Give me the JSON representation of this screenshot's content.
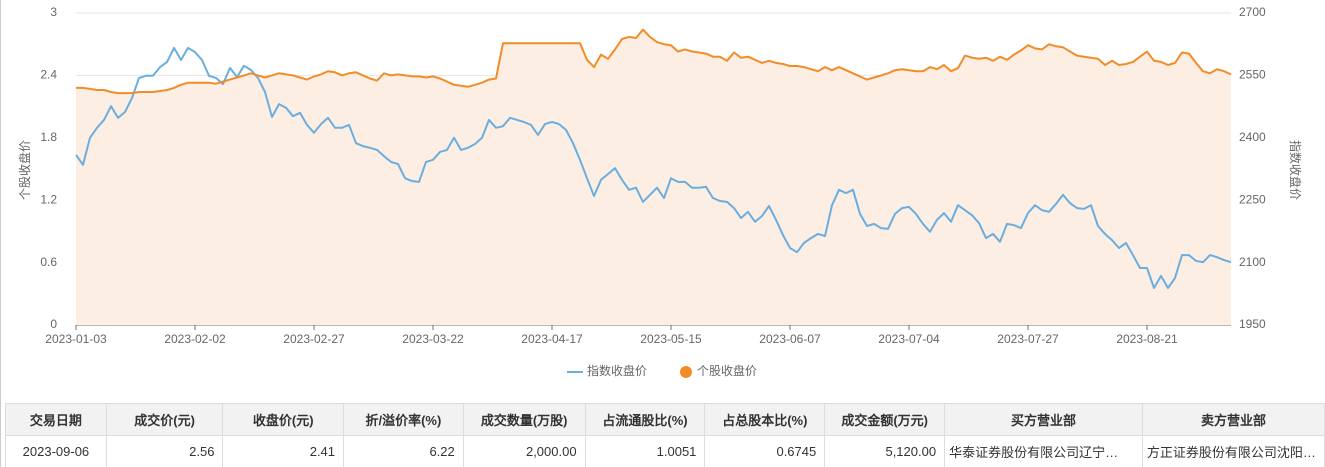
{
  "chart_data": {
    "type": "line",
    "ylabel": "个股收盘价",
    "y2label": "指数收盘价",
    "ylim": [
      0,
      3
    ],
    "yticks": [
      0,
      0.6,
      1.2,
      1.8,
      2.4,
      3
    ],
    "y2lim": [
      1950,
      2700
    ],
    "y2ticks": [
      1950,
      2100,
      2250,
      2400,
      2550,
      2700
    ],
    "grid": true,
    "legend": "bottom",
    "categories": [
      "2023-01-03",
      null,
      null,
      null,
      null,
      null,
      null,
      null,
      null,
      null,
      null,
      null,
      null,
      null,
      null,
      null,
      null,
      "2023-02-02",
      null,
      null,
      null,
      null,
      null,
      null,
      null,
      null,
      null,
      null,
      null,
      null,
      null,
      null,
      null,
      null,
      "2023-02-27",
      null,
      null,
      null,
      null,
      null,
      null,
      null,
      null,
      null,
      null,
      null,
      null,
      null,
      null,
      null,
      null,
      "2023-03-22",
      null,
      null,
      null,
      null,
      null,
      null,
      null,
      null,
      null,
      null,
      null,
      null,
      null,
      null,
      null,
      null,
      "2023-04-17",
      null,
      null,
      null,
      null,
      null,
      null,
      null,
      null,
      null,
      null,
      null,
      null,
      null,
      null,
      null,
      null,
      "2023-05-15",
      null,
      null,
      null,
      null,
      null,
      null,
      null,
      null,
      null,
      null,
      null,
      null,
      null,
      null,
      null,
      null,
      "2023-06-07",
      null,
      null,
      null,
      null,
      null,
      null,
      null,
      null,
      null,
      null,
      null,
      null,
      null,
      null,
      null,
      null,
      "2023-07-04",
      null,
      null,
      null,
      null,
      null,
      null,
      null,
      null,
      null,
      null,
      null,
      null,
      null,
      null,
      null,
      null,
      "2023-07-27",
      null,
      null,
      null,
      null,
      null,
      null,
      null,
      null,
      null,
      null,
      null,
      null,
      null,
      null,
      null,
      null,
      "2023-08-21",
      null,
      null,
      null,
      null,
      null,
      null,
      null,
      null,
      null,
      null,
      null,
      null
    ],
    "series": [
      {
        "name": "指数收盘价",
        "color": "#6aaee0",
        "axis": "y2",
        "values": [
          2359,
          2335,
          2400,
          2424,
          2443,
          2476,
          2448,
          2462,
          2496,
          2544,
          2549,
          2549,
          2570,
          2582,
          2616,
          2587,
          2616,
          2606,
          2587,
          2549,
          2544,
          2529,
          2568,
          2546,
          2573,
          2563,
          2544,
          2510,
          2450,
          2481,
          2472,
          2452,
          2460,
          2431,
          2412,
          2433,
          2448,
          2424,
          2424,
          2431,
          2387,
          2380,
          2376,
          2371,
          2356,
          2342,
          2337,
          2303,
          2296,
          2294,
          2342,
          2347,
          2366,
          2371,
          2400,
          2371,
          2376,
          2385,
          2400,
          2443,
          2424,
          2428,
          2448,
          2443,
          2438,
          2431,
          2407,
          2433,
          2438,
          2433,
          2419,
          2387,
          2347,
          2303,
          2260,
          2299,
          2313,
          2327,
          2299,
          2275,
          2280,
          2246,
          2263,
          2280,
          2255,
          2303,
          2294,
          2294,
          2280,
          2280,
          2282,
          2255,
          2248,
          2246,
          2231,
          2207,
          2222,
          2198,
          2212,
          2236,
          2203,
          2166,
          2135,
          2125,
          2147,
          2159,
          2169,
          2164,
          2238,
          2275,
          2267,
          2275,
          2217,
          2188,
          2193,
          2183,
          2181,
          2217,
          2231,
          2234,
          2217,
          2193,
          2174,
          2203,
          2219,
          2198,
          2238,
          2226,
          2214,
          2195,
          2159,
          2169,
          2150,
          2193,
          2190,
          2183,
          2219,
          2238,
          2226,
          2222,
          2241,
          2263,
          2243,
          2231,
          2229,
          2238,
          2188,
          2169,
          2154,
          2135,
          2147,
          2118,
          2087,
          2087,
          2039,
          2068,
          2039,
          2063,
          2118,
          2118,
          2104,
          2101,
          2118,
          2113,
          2106,
          2101
        ]
      },
      {
        "name": "个股收盘价",
        "color": "#f28c28",
        "axis": "y",
        "area": "#fdeee4",
        "values": [
          2.28,
          2.28,
          2.27,
          2.26,
          2.26,
          2.24,
          2.23,
          2.23,
          2.23,
          2.24,
          2.24,
          2.24,
          2.25,
          2.26,
          2.28,
          2.31,
          2.33,
          2.33,
          2.33,
          2.33,
          2.32,
          2.34,
          2.36,
          2.38,
          2.4,
          2.42,
          2.4,
          2.38,
          2.4,
          2.42,
          2.41,
          2.4,
          2.38,
          2.36,
          2.39,
          2.41,
          2.44,
          2.43,
          2.4,
          2.42,
          2.43,
          2.4,
          2.37,
          2.35,
          2.42,
          2.4,
          2.41,
          2.4,
          2.39,
          2.39,
          2.38,
          2.39,
          2.37,
          2.34,
          2.31,
          2.3,
          2.29,
          2.31,
          2.33,
          2.36,
          2.37,
          2.71,
          2.71,
          2.71,
          2.71,
          2.71,
          2.71,
          2.71,
          2.71,
          2.71,
          2.71,
          2.71,
          2.71,
          2.55,
          2.48,
          2.6,
          2.56,
          2.65,
          2.75,
          2.77,
          2.76,
          2.84,
          2.77,
          2.72,
          2.7,
          2.69,
          2.63,
          2.65,
          2.63,
          2.62,
          2.61,
          2.58,
          2.58,
          2.54,
          2.62,
          2.57,
          2.58,
          2.55,
          2.52,
          2.54,
          2.52,
          2.51,
          2.49,
          2.49,
          2.48,
          2.46,
          2.44,
          2.48,
          2.45,
          2.48,
          2.45,
          2.42,
          2.39,
          2.36,
          2.38,
          2.4,
          2.42,
          2.45,
          2.46,
          2.45,
          2.44,
          2.44,
          2.48,
          2.46,
          2.5,
          2.44,
          2.47,
          2.59,
          2.57,
          2.56,
          2.57,
          2.54,
          2.58,
          2.55,
          2.6,
          2.64,
          2.69,
          2.66,
          2.65,
          2.7,
          2.68,
          2.67,
          2.63,
          2.59,
          2.58,
          2.57,
          2.56,
          2.5,
          2.54,
          2.5,
          2.51,
          2.53,
          2.58,
          2.63,
          2.54,
          2.53,
          2.5,
          2.52,
          2.62,
          2.61,
          2.52,
          2.44,
          2.42,
          2.46,
          2.44,
          2.41
        ]
      }
    ]
  },
  "table": {
    "columns": [
      "交易日期",
      "成交价(元)",
      "收盘价(元)",
      "折/溢价率(%)",
      "成交数量(万股)",
      "占流通股比(%)",
      "占总股本比(%)",
      "成交金额(万元)",
      "买方营业部",
      "卖方营业部"
    ],
    "rows": [
      [
        "2023-09-06",
        "2.56",
        "2.41",
        "6.22",
        "2,000.00",
        "1.0051",
        "0.6745",
        "5,120.00",
        "华泰证券股份有限公司辽宁…",
        "方正证券股份有限公司沈阳…"
      ]
    ]
  }
}
